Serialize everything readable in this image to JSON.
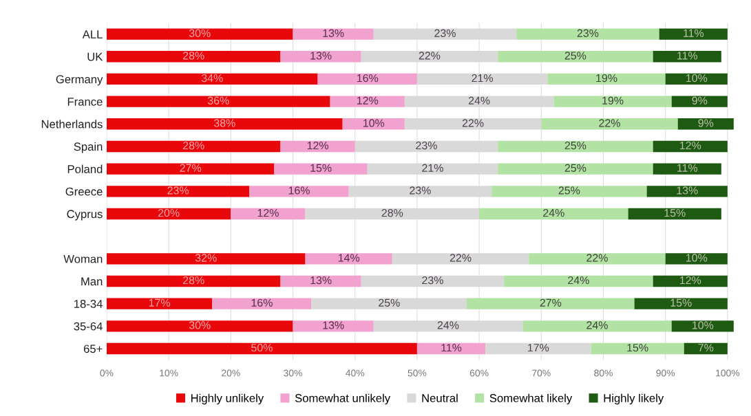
{
  "chart_data": {
    "type": "bar",
    "orientation": "horizontal",
    "stacked": true,
    "categories": [
      "ALL",
      "UK",
      "Germany",
      "France",
      "Netherlands",
      "Spain",
      "Poland",
      "Greece",
      "Cyprus",
      null,
      "Woman",
      "Man",
      "18-34",
      "35-64",
      "65+"
    ],
    "series": [
      {
        "name": "Highly unlikely",
        "color": "#e8070b",
        "values": [
          30,
          28,
          34,
          36,
          38,
          28,
          27,
          23,
          20,
          null,
          32,
          28,
          17,
          30,
          50
        ],
        "value_labels": [
          "30%",
          "28%",
          "34%",
          "36%",
          "38%",
          "28%",
          "27%",
          "23%",
          "20%",
          null,
          "32%",
          "28%",
          "17%",
          "30%",
          "50%"
        ]
      },
      {
        "name": "Somewhat unlikely",
        "color": "#f2a2cf",
        "values": [
          13,
          13,
          16,
          12,
          10,
          12,
          15,
          16,
          12,
          null,
          14,
          13,
          16,
          13,
          11
        ],
        "value_labels": [
          "13%",
          "13%",
          "16%",
          "12%",
          "10%",
          "12%",
          "15%",
          "16%",
          "12%",
          null,
          "14%",
          "13%",
          "16%",
          "13%",
          "11%"
        ]
      },
      {
        "name": "Neutral",
        "color": "#d9d9d9",
        "values": [
          23,
          22,
          21,
          24,
          22,
          23,
          21,
          23,
          28,
          null,
          22,
          23,
          25,
          24,
          17
        ],
        "value_labels": [
          "23%",
          "22%",
          "21%",
          "24%",
          "22%",
          "23%",
          "21%",
          "23%",
          "28%",
          null,
          "22%",
          "23%",
          "25%",
          "24%",
          "17%"
        ]
      },
      {
        "name": "Somewhat likely",
        "color": "#b3e2a5",
        "values": [
          23,
          25,
          19,
          19,
          22,
          25,
          25,
          25,
          24,
          null,
          22,
          24,
          27,
          24,
          15
        ],
        "value_labels": [
          "23%",
          "25%",
          "19%",
          "19%",
          "22%",
          "25%",
          "25%",
          "25%",
          "24%",
          null,
          "22%",
          "24%",
          "27%",
          "24%",
          "15%"
        ]
      },
      {
        "name": "Highly likely",
        "color": "#1e5a12",
        "values": [
          11,
          11,
          10,
          9,
          9,
          12,
          11,
          13,
          15,
          null,
          10,
          12,
          15,
          10,
          7
        ],
        "value_labels": [
          "11%",
          "11%",
          "10%",
          "9%",
          "9%",
          "12%",
          "11%",
          "13%",
          "15%",
          null,
          "10%",
          "12%",
          "15%",
          "10%",
          "7%"
        ]
      }
    ],
    "xlim": [
      0,
      101
    ],
    "xticks": [
      {
        "value": 0,
        "label": "0%"
      },
      {
        "value": 10,
        "label": "10%"
      },
      {
        "value": 20,
        "label": "20%"
      },
      {
        "value": 30,
        "label": "30%"
      },
      {
        "value": 40,
        "label": "40%"
      },
      {
        "value": 50,
        "label": "50%"
      },
      {
        "value": 60,
        "label": "60%"
      },
      {
        "value": 70,
        "label": "70%"
      },
      {
        "value": 80,
        "label": "80%"
      },
      {
        "value": 90,
        "label": "90%"
      },
      {
        "value": 100,
        "label": "100%"
      }
    ],
    "grid": "x",
    "legend": "bottom"
  }
}
